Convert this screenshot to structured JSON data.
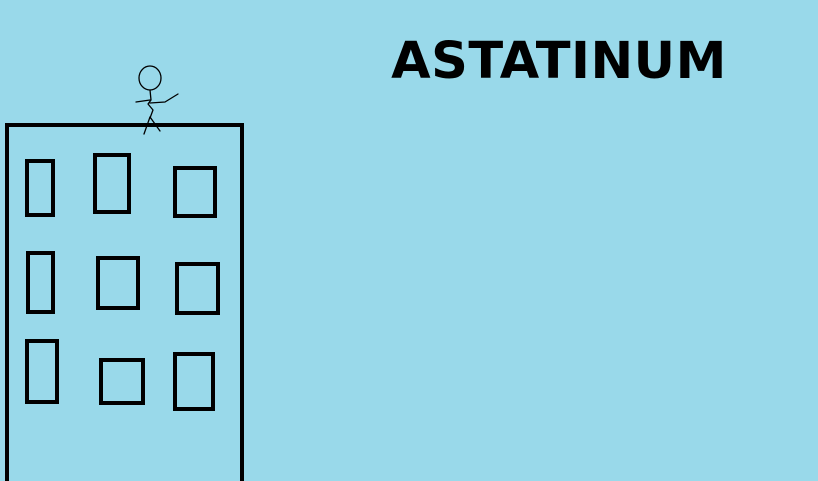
{
  "title": "ASTATINUM",
  "colors": {
    "background": "#99d9ea",
    "ink": "#000000"
  },
  "scene": {
    "building": {
      "windows_rows": 3,
      "windows_per_row": 3
    },
    "figure": "stick-figure"
  }
}
